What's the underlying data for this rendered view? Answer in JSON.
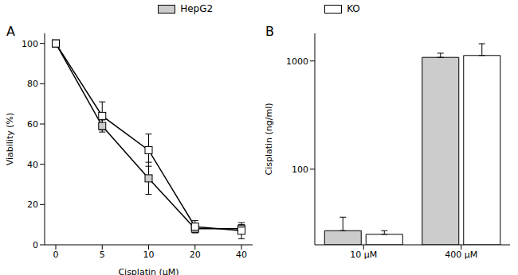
{
  "chart_data": [
    {
      "type": "line",
      "title": "A",
      "xlabel": "Cisplatin (μM)",
      "ylabel": "Viability (%)",
      "categories": [
        "0",
        "5",
        "10",
        "20",
        "40"
      ],
      "ylim": [
        0,
        105
      ],
      "yticks": [
        0,
        20,
        40,
        60,
        80,
        100
      ],
      "legend": "top",
      "marker": "square",
      "series": [
        {
          "name": "HepG2",
          "color": "#cccccc",
          "values": [
            100,
            59,
            33,
            8,
            8
          ],
          "errors": [
            0,
            3,
            8,
            2,
            2
          ]
        },
        {
          "name": "KO",
          "color": "#ffffff",
          "values": [
            100,
            64,
            47,
            9,
            7
          ],
          "errors": [
            0,
            7,
            8,
            3,
            4
          ]
        }
      ]
    },
    {
      "type": "bar",
      "title": "B",
      "ylabel": "Cisplatin (ng/ml)",
      "categories": [
        "10 μM",
        "400 μM"
      ],
      "log": "y",
      "ylim": [
        20,
        1800
      ],
      "yticks": [
        100,
        1000
      ],
      "series": [
        {
          "name": "HepG2",
          "color": "#cccccc",
          "values": [
            27,
            1080
          ],
          "upper_errors": [
            9,
            100
          ]
        },
        {
          "name": "KO",
          "color": "#ffffff",
          "values": [
            25,
            1125
          ],
          "upper_errors": [
            2,
            320
          ]
        }
      ]
    }
  ]
}
